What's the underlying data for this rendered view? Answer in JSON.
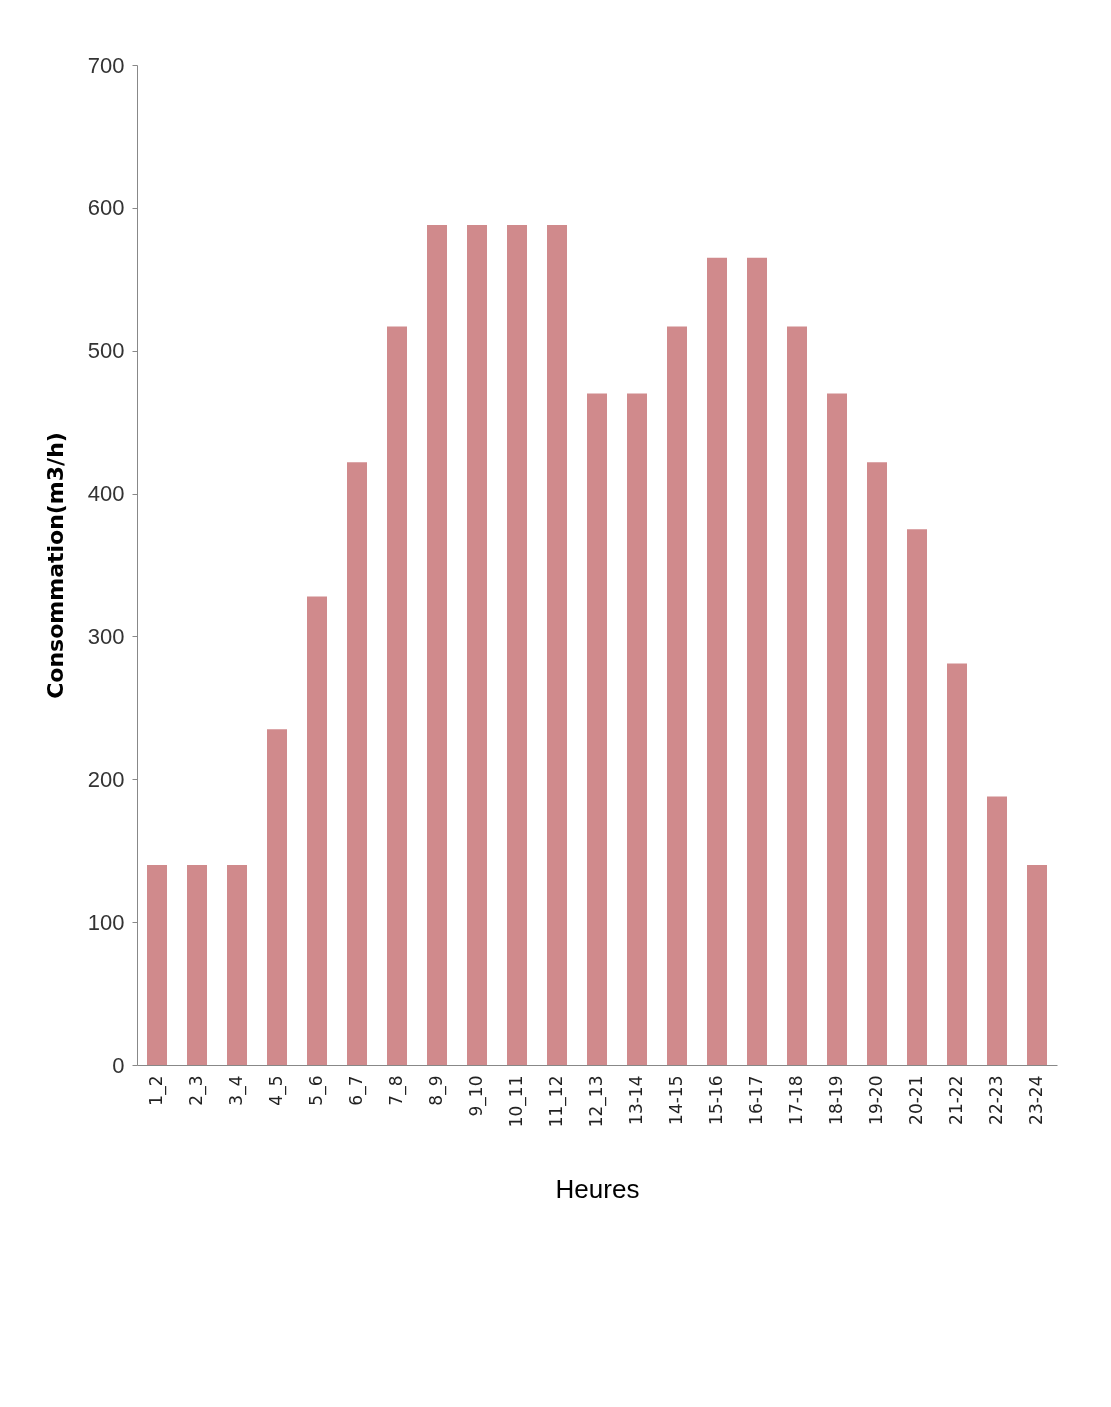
{
  "chart_data": {
    "type": "bar",
    "xlabel": "Heures",
    "ylabel": "Consommation(m3/h)",
    "categories": [
      "1_2",
      "2_3",
      "3_4",
      "4_5",
      "5_6",
      "6_7",
      "7_8",
      "8_9",
      "9_10",
      "10_11",
      "11_12",
      "12_13",
      "13-14",
      "14-15",
      "15-16",
      "16-17",
      "17-18",
      "18-19",
      "19-20",
      "20-21",
      "21-22",
      "22-23",
      "23-24"
    ],
    "values": [
      140,
      140,
      140,
      235,
      328,
      422,
      517,
      588,
      588,
      588,
      588,
      470,
      470,
      517,
      565,
      565,
      517,
      470,
      422,
      375,
      281,
      188,
      140
    ],
    "color": "#d08a8c",
    "ylim": [
      0,
      700
    ],
    "yticks": [
      0,
      100,
      200,
      300,
      400,
      500,
      600,
      700
    ],
    "grid": false
  }
}
